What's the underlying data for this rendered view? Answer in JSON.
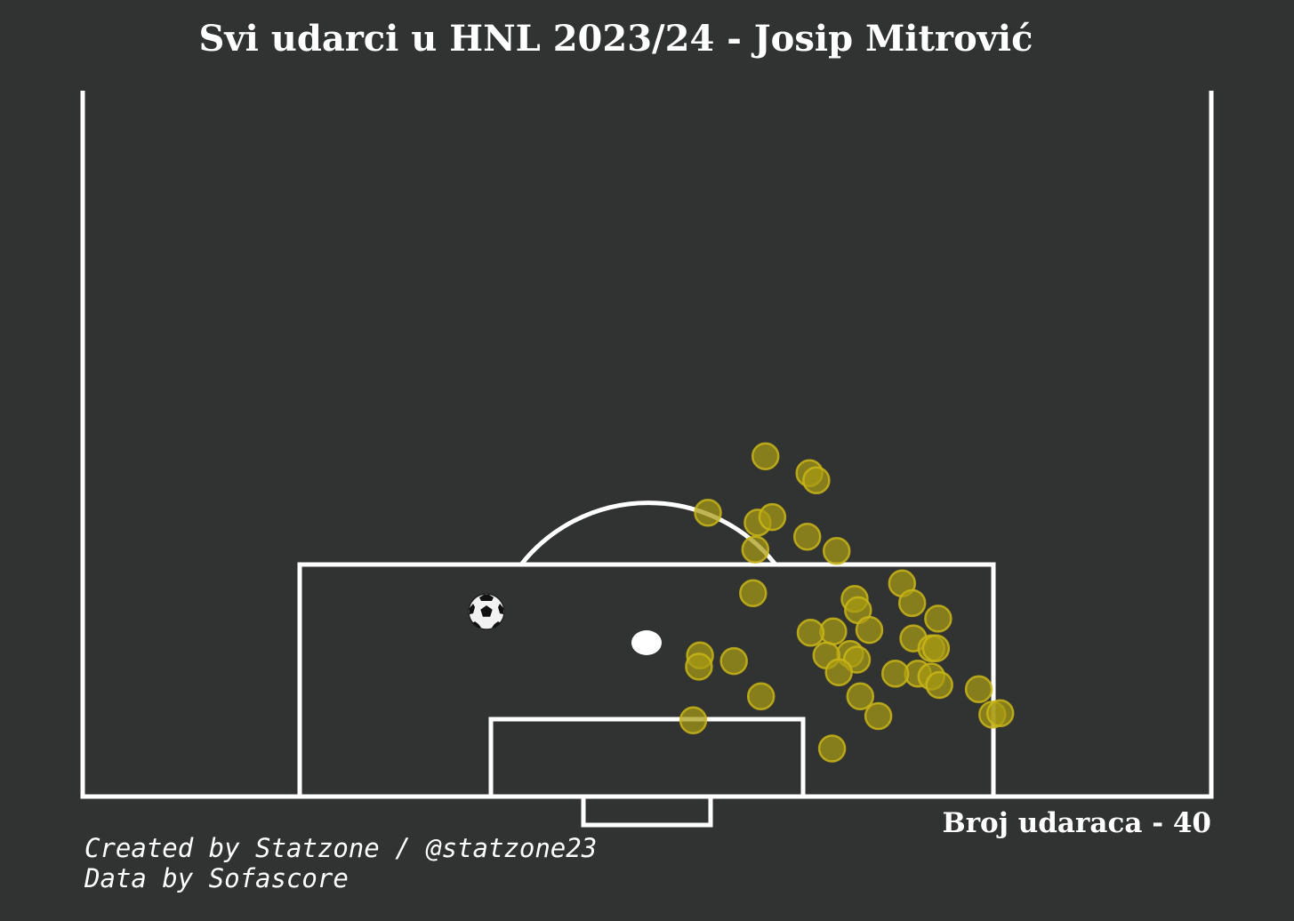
{
  "title": "Svi udarci u HNL 2023/24 - Josip Mitrović",
  "shot_count_label": "Broj udaraca - 40",
  "credits": {
    "created": "Created by Statzone / @statzone23",
    "data": "Data by Sofascore"
  },
  "colors": {
    "background": "#313332",
    "lines": "#ffffff",
    "shot_fill": "#a89a14",
    "shot_edge": "#c9b516"
  },
  "chart_data": {
    "type": "scatter",
    "title": "Svi udarci u HNL 2023/24 - Josip Mitrović",
    "xlabel": "",
    "ylabel": "",
    "xlim": [
      0,
      100
    ],
    "ylim": [
      50,
      100
    ],
    "grid": false,
    "pitch": "opta half-pitch, vertical",
    "shots": [
      {
        "x": 75.9,
        "y": 60.5
      },
      {
        "x": 77.1,
        "y": 64.4
      },
      {
        "x": 77.6,
        "y": 65.0
      },
      {
        "x": 80.6,
        "y": 59.8
      },
      {
        "x": 80.2,
        "y": 61.1
      },
      {
        "x": 79.9,
        "y": 55.4
      },
      {
        "x": 81.6,
        "y": 64.2
      },
      {
        "x": 82.5,
        "y": 59.6
      },
      {
        "x": 82.6,
        "y": 66.8
      },
      {
        "x": 85.6,
        "y": 59.4
      },
      {
        "x": 84.9,
        "y": 72.6
      },
      {
        "x": 86.3,
        "y": 73.5
      },
      {
        "x": 86.0,
        "y": 68.4
      },
      {
        "x": 86.8,
        "y": 68.7
      },
      {
        "x": 87.4,
        "y": 75.8
      },
      {
        "x": 88.2,
        "y": 69.7
      },
      {
        "x": 88.3,
        "y": 66.5
      },
      {
        "x": 88.4,
        "y": 64.5
      },
      {
        "x": 88.8,
        "y": 73.6
      },
      {
        "x": 89.5,
        "y": 75.2
      },
      {
        "x": 89.5,
        "y": 75.6
      },
      {
        "x": 89.9,
        "y": 68.0
      },
      {
        "x": 90.0,
        "y": 65.9
      },
      {
        "x": 90.4,
        "y": 57.7
      },
      {
        "x": 90.0,
        "y": 54.7
      },
      {
        "x": 90.3,
        "y": 68.6
      },
      {
        "x": 90.8,
        "y": 54.6
      },
      {
        "x": 91.2,
        "y": 67.0
      },
      {
        "x": 91.3,
        "y": 74.0
      },
      {
        "x": 91.3,
        "y": 72.0
      },
      {
        "x": 91.5,
        "y": 75.2
      },
      {
        "x": 92.1,
        "y": 75.9
      },
      {
        "x": 92.4,
        "y": 79.4
      },
      {
        "x": 92.9,
        "y": 60.1
      },
      {
        "x": 92.9,
        "y": 68.9
      },
      {
        "x": 94.2,
        "y": 80.6
      },
      {
        "x": 94.3,
        "y": 70.5
      },
      {
        "x": 94.1,
        "y": 81.3
      },
      {
        "x": 94.6,
        "y": 54.1
      },
      {
        "x": 96.6,
        "y": 66.4
      }
    ]
  }
}
